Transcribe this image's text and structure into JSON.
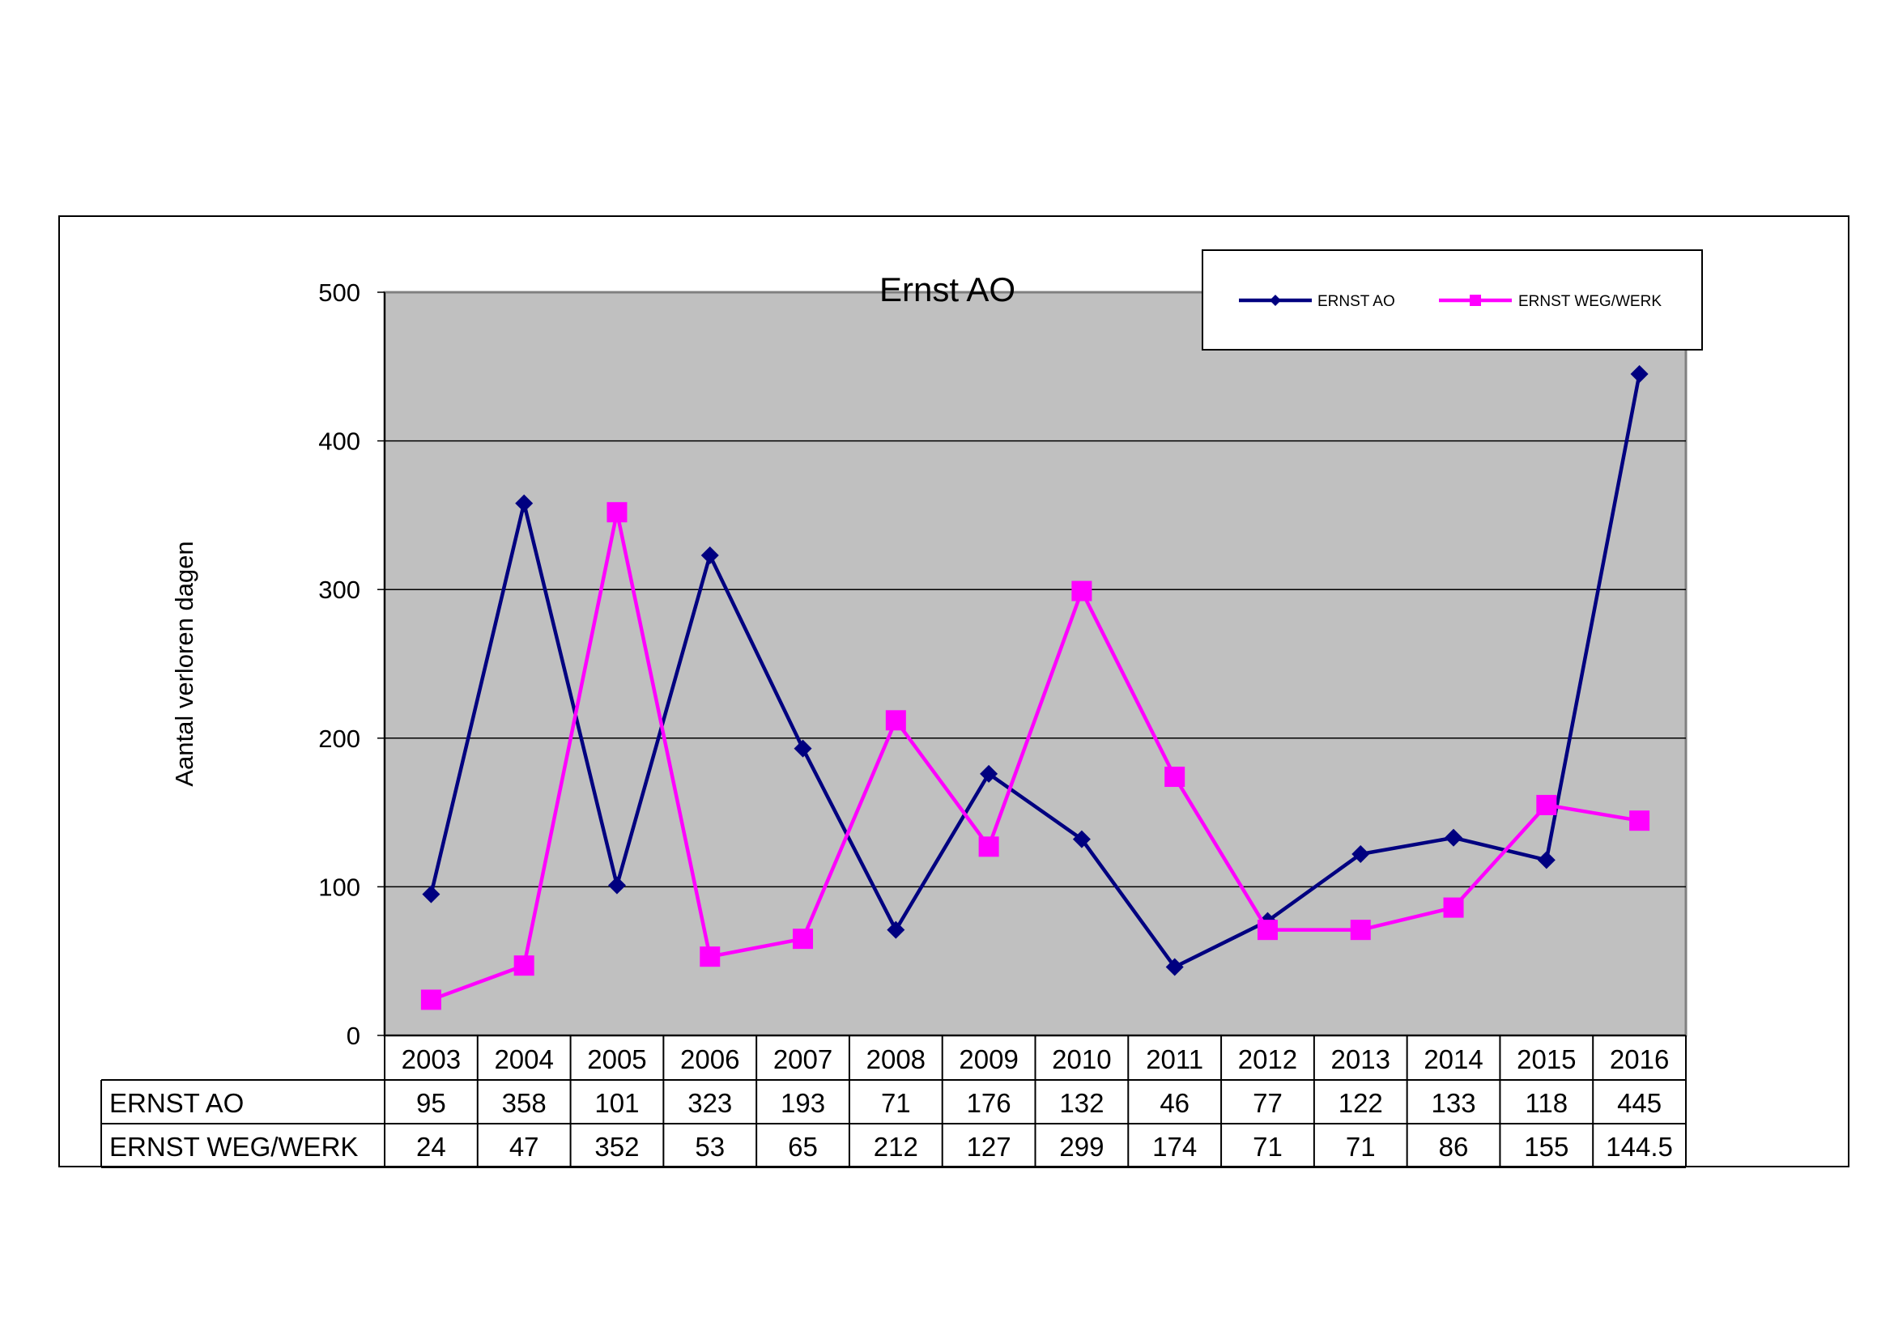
{
  "chart_data": {
    "type": "line",
    "title": "Ernst AO",
    "xlabel": "",
    "ylabel": "Aantal verloren dagen",
    "ylim": [
      0,
      500
    ],
    "yticks": [
      0,
      100,
      200,
      300,
      400,
      500
    ],
    "grid": true,
    "legend_position": "top-right",
    "categories": [
      "2003",
      "2004",
      "2005",
      "2006",
      "2007",
      "2008",
      "2009",
      "2010",
      "2011",
      "2012",
      "2013",
      "2014",
      "2015",
      "2016"
    ],
    "series": [
      {
        "name": "ERNST AO",
        "color": "#000080",
        "marker": "diamond",
        "values": [
          95,
          358,
          101,
          323,
          193,
          71,
          176,
          132,
          46,
          77,
          122,
          133,
          118,
          445
        ]
      },
      {
        "name": "ERNST WEG/WERK",
        "color": "#FF00FF",
        "marker": "square",
        "values": [
          24,
          47,
          352,
          53,
          65,
          212,
          127,
          299,
          174,
          71,
          71,
          86,
          155,
          144.5
        ]
      }
    ],
    "data_table": {
      "rows": [
        {
          "label": "ERNST AO",
          "cells": [
            "95",
            "358",
            "101",
            "323",
            "193",
            "71",
            "176",
            "132",
            "46",
            "77",
            "122",
            "133",
            "118",
            "445"
          ]
        },
        {
          "label": "ERNST WEG/WERK",
          "cells": [
            "24",
            "47",
            "352",
            "53",
            "65",
            "212",
            "127",
            "299",
            "174",
            "71",
            "71",
            "86",
            "155",
            "144.5"
          ]
        }
      ]
    },
    "plot_background": "#C0C0C0"
  }
}
